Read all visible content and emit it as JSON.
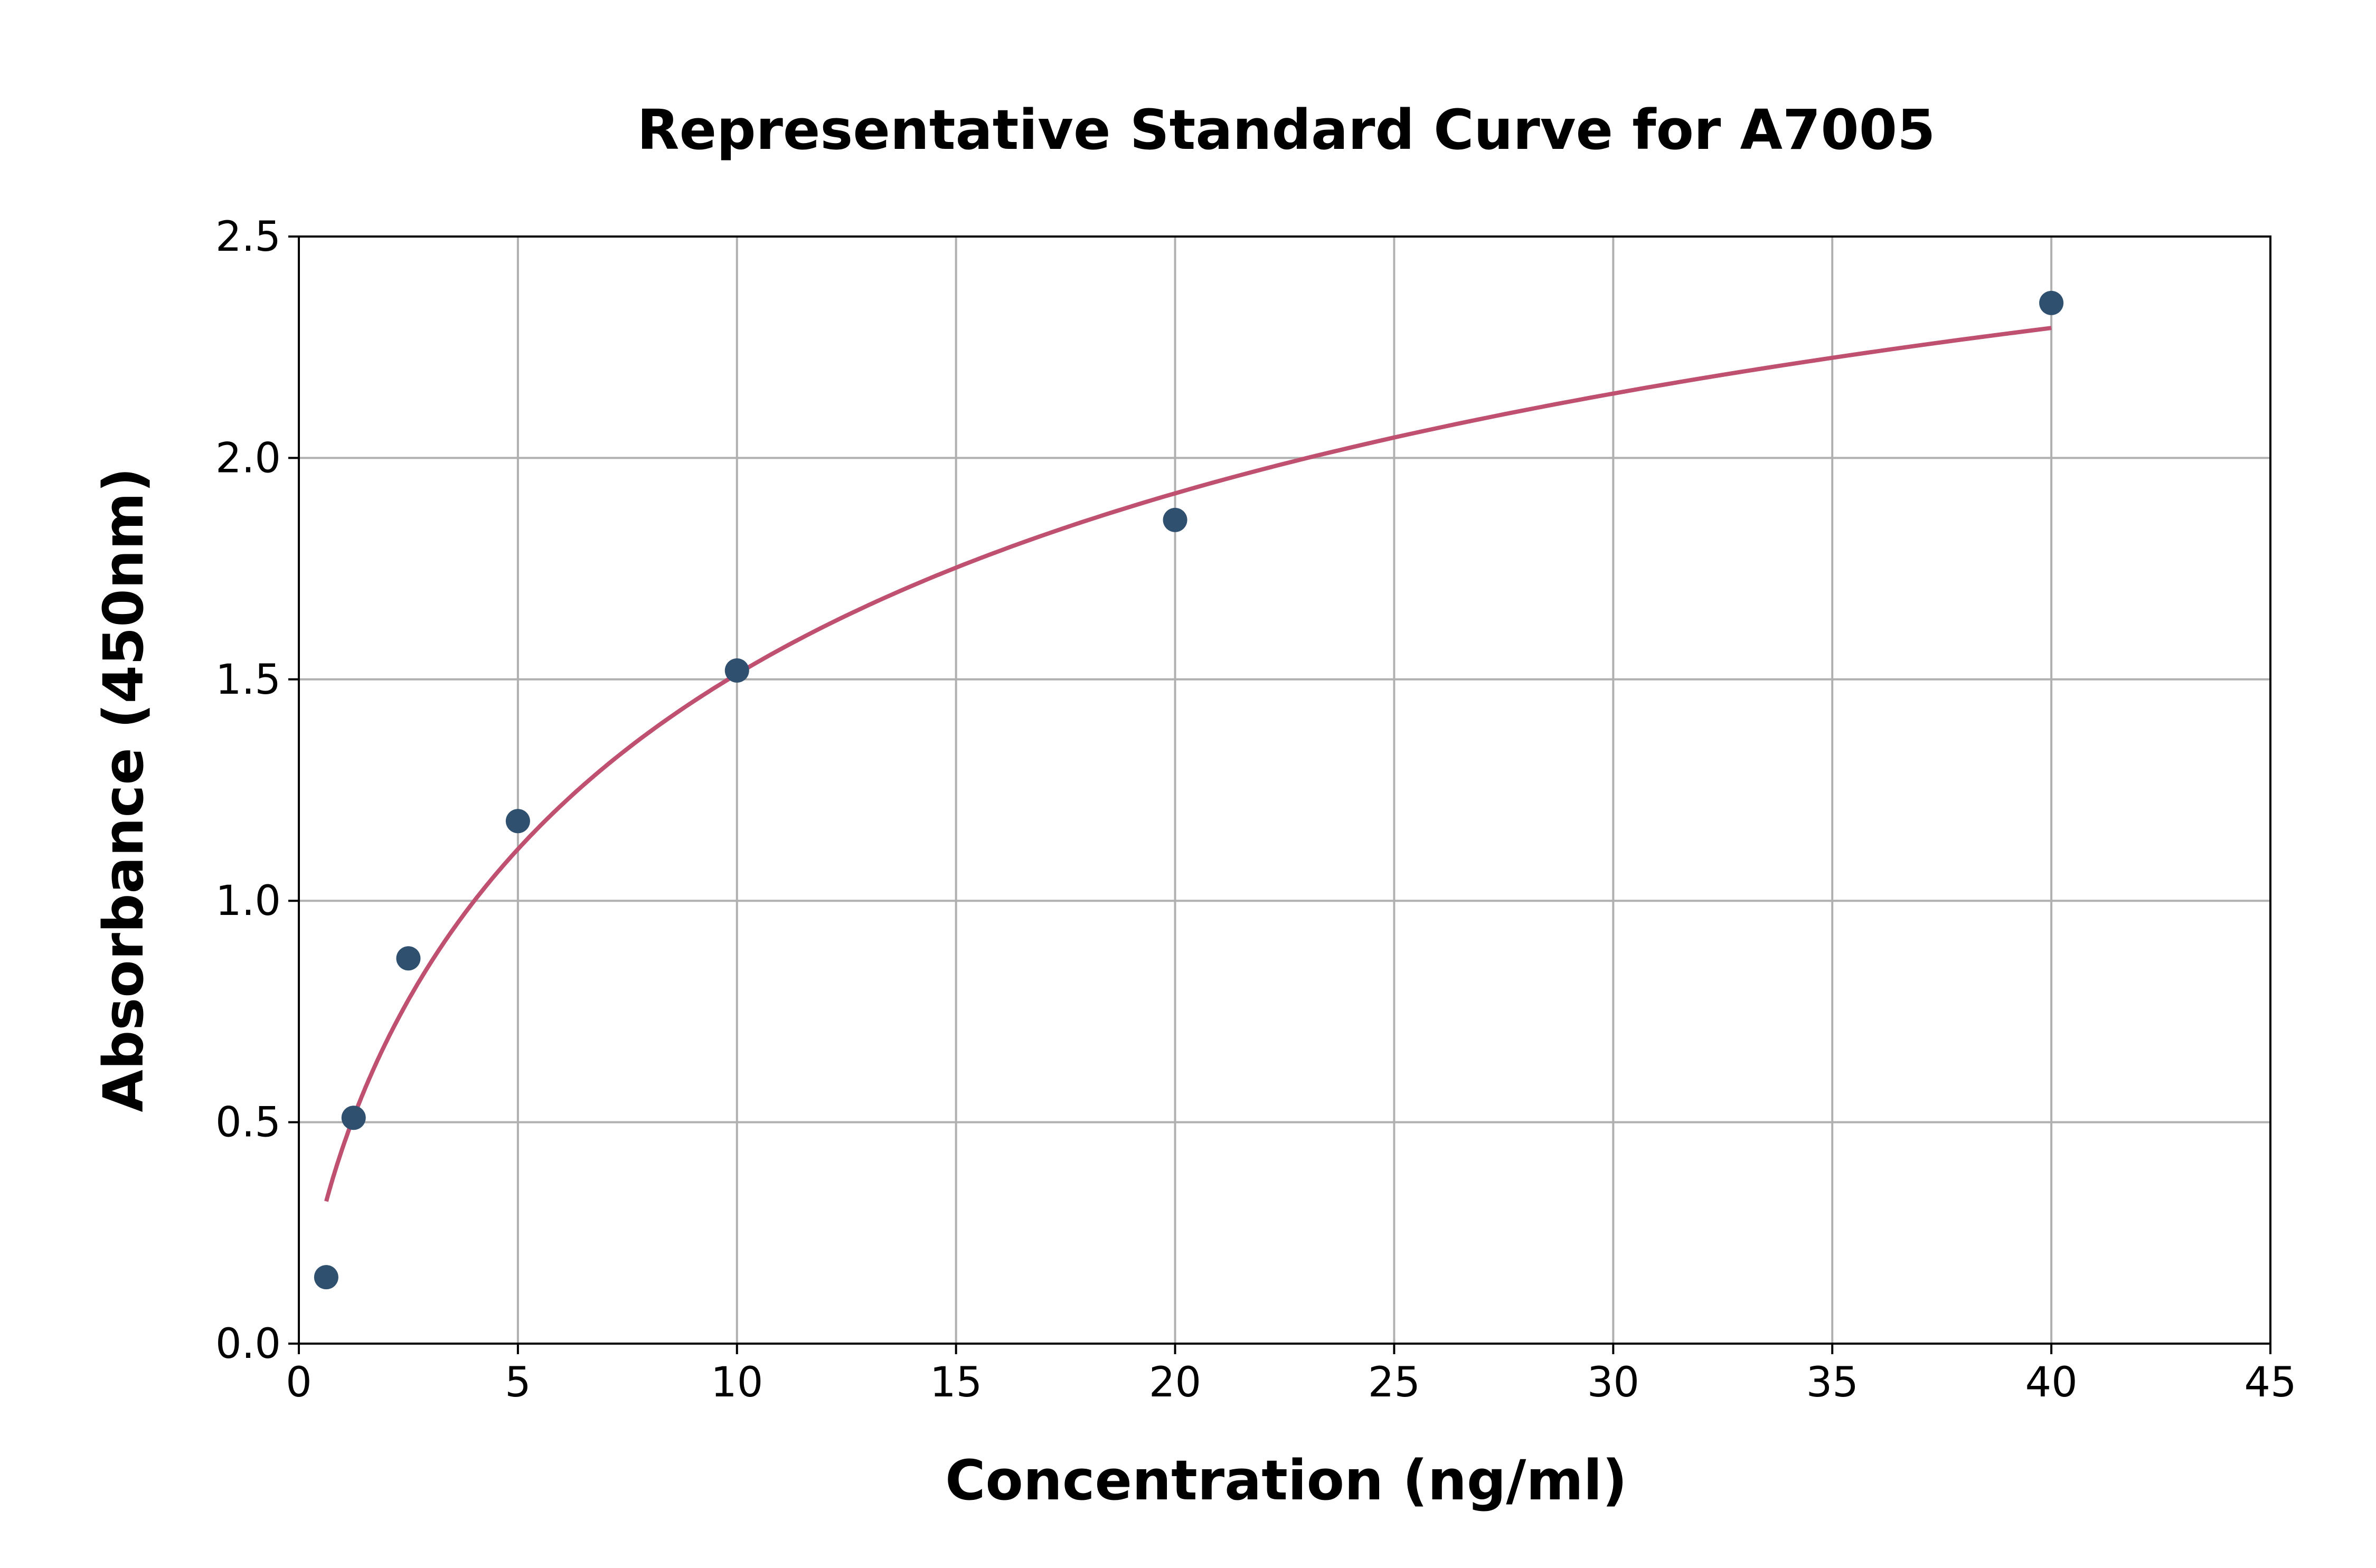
{
  "chart_data": {
    "type": "scatter",
    "title": "Representative Standard Curve for A7005",
    "xlabel": "Concentration (ng/ml)",
    "ylabel": "Absorbance (450nm)",
    "xlim": [
      0,
      45
    ],
    "ylim": [
      0,
      2.5
    ],
    "xticks": [
      "0",
      "5",
      "10",
      "15",
      "20",
      "25",
      "30",
      "35",
      "40",
      "45"
    ],
    "yticks": [
      "0.0",
      "0.5",
      "1.0",
      "1.5",
      "2.0",
      "2.5"
    ],
    "grid": true,
    "points": {
      "x": [
        0.625,
        1.25,
        2.5,
        5,
        10,
        20,
        40
      ],
      "y": [
        0.15,
        0.51,
        0.87,
        1.18,
        1.52,
        1.86,
        2.35
      ]
    },
    "fit_curve": "fitted standard curve through the points, from 0.625 to 40",
    "colors": {
      "points": "#30506f",
      "curve": "#c0506f",
      "grid": "#b0b0b0"
    }
  }
}
